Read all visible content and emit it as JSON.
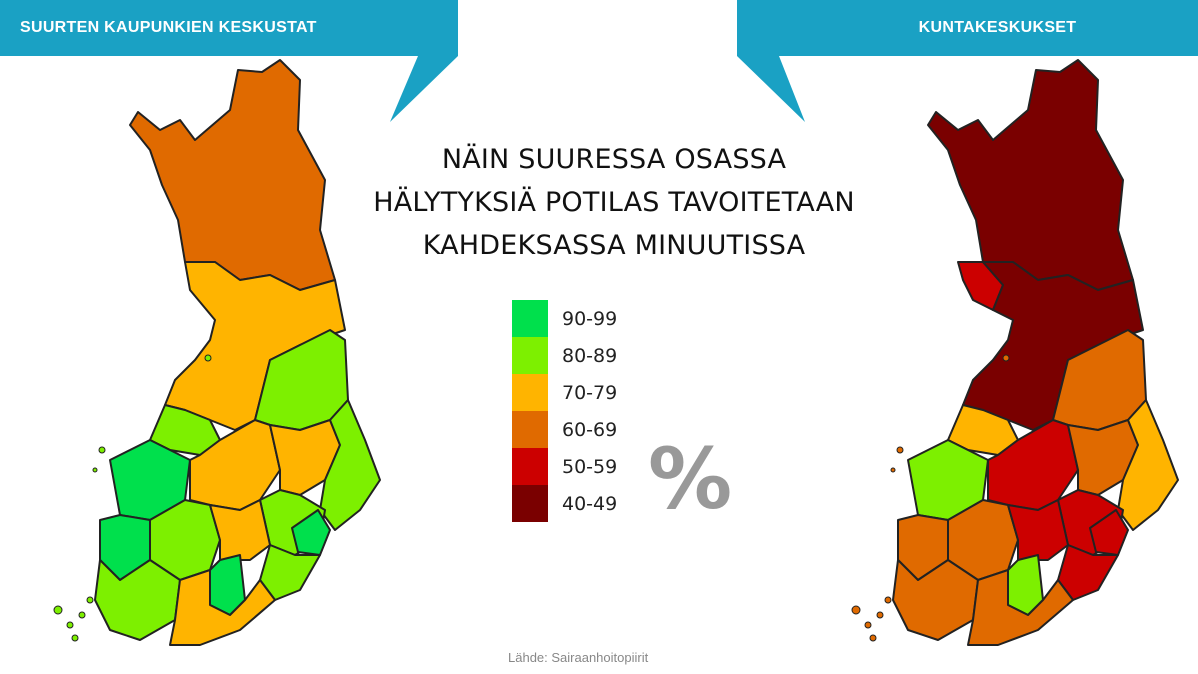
{
  "header": {
    "left_label": "SUURTEN KAUPUNKIEN KESKUSTAT",
    "right_label": "KUNTAKESKUKSET"
  },
  "title": {
    "line1": "NÄIN SUURESSA OSASSA",
    "line2": "HÄLYTYKSIÄ POTILAS TAVOITETAAN",
    "line3": "KAHDEKSASSA MINUUTISSA"
  },
  "legend": {
    "items": [
      {
        "label": "90-99",
        "color": "#00e04c"
      },
      {
        "label": "80-89",
        "color": "#7df000"
      },
      {
        "label": "70-79",
        "color": "#ffb400"
      },
      {
        "label": "60-69",
        "color": "#e06a00"
      },
      {
        "label": "50-59",
        "color": "#cc0000"
      },
      {
        "label": "40-49",
        "color": "#7a0000"
      }
    ],
    "unit": "%"
  },
  "source": "Lähde: Sairaanhoitopiirit",
  "colors": {
    "banner": "#1aa1c4",
    "green_high": "#00e04c",
    "green": "#7df000",
    "yellow": "#ffb400",
    "orange": "#e06a00",
    "red": "#cc0000",
    "darkred": "#7a0000"
  }
}
